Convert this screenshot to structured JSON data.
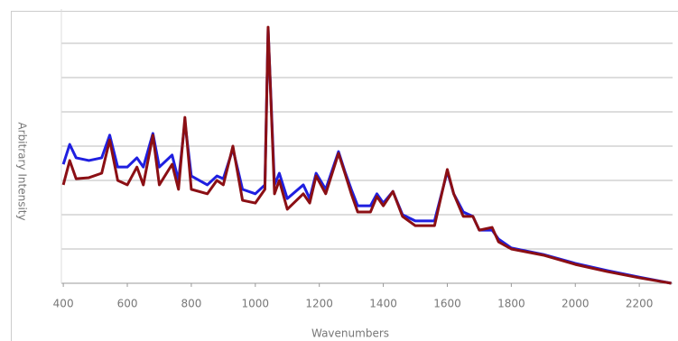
{
  "chart_data": {
    "type": "line",
    "x_label": "Wavenumbers",
    "y_label": "Arbitrary Intensity",
    "x": [
      400,
      420,
      440,
      480,
      520,
      545,
      570,
      600,
      630,
      650,
      680,
      700,
      740,
      760,
      780,
      800,
      850,
      880,
      900,
      930,
      960,
      1000,
      1030,
      1040,
      1060,
      1075,
      1100,
      1150,
      1170,
      1190,
      1220,
      1260,
      1280,
      1300,
      1320,
      1360,
      1380,
      1400,
      1430,
      1460,
      1500,
      1560,
      1600,
      1620,
      1650,
      1680,
      1700,
      1740,
      1760,
      1800,
      1900,
      2000,
      2100,
      2200,
      2300
    ],
    "series": [
      {
        "color": "#1f1fe0",
        "values": [
          3.47,
          4.05,
          3.66,
          3.58,
          3.66,
          4.32,
          3.39,
          3.39,
          3.66,
          3.39,
          4.37,
          3.39,
          3.74,
          3.0,
          4.71,
          3.13,
          2.87,
          3.13,
          3.05,
          3.92,
          2.74,
          2.61,
          2.87,
          7.42,
          2.87,
          3.21,
          2.47,
          2.87,
          2.47,
          3.21,
          2.74,
          3.84,
          3.26,
          2.74,
          2.26,
          2.26,
          2.61,
          2.34,
          2.68,
          2.0,
          1.82,
          1.82,
          3.26,
          2.61,
          2.08,
          1.95,
          1.55,
          1.55,
          1.29,
          1.03,
          0.84,
          0.58,
          0.37,
          0.18,
          0
        ]
      },
      {
        "color": "#8b0f14",
        "values": [
          2.87,
          3.58,
          3.05,
          3.08,
          3.21,
          4.18,
          3.0,
          2.87,
          3.39,
          2.87,
          4.32,
          2.87,
          3.47,
          2.74,
          4.84,
          2.74,
          2.61,
          3.0,
          2.87,
          4.0,
          2.42,
          2.34,
          2.74,
          7.47,
          2.61,
          3.0,
          2.16,
          2.61,
          2.34,
          3.13,
          2.61,
          3.79,
          3.21,
          2.61,
          2.08,
          2.08,
          2.53,
          2.26,
          2.68,
          1.95,
          1.68,
          1.68,
          3.32,
          2.61,
          1.95,
          1.95,
          1.55,
          1.63,
          1.21,
          1.0,
          0.82,
          0.55,
          0.34,
          0.16,
          0
        ]
      }
    ],
    "xlim": [
      394,
      2304
    ],
    "xticks": [
      400,
      600,
      800,
      1000,
      1200,
      1400,
      1600,
      1800,
      2000,
      2200
    ],
    "ylim": [
      0,
      8
    ],
    "yticks": [
      1,
      2,
      3,
      4,
      5,
      6,
      7
    ],
    "ytick_labels": false,
    "grid": true
  }
}
